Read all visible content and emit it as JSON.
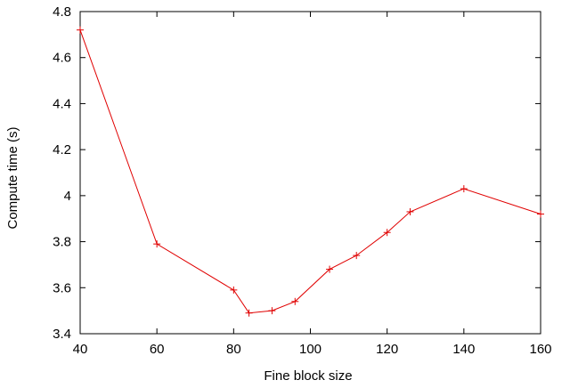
{
  "chart_data": {
    "type": "line",
    "title": "",
    "xlabel": "Fine block size",
    "ylabel": "Compute time (s)",
    "xlim": [
      40,
      160
    ],
    "ylim": [
      3.4,
      4.8
    ],
    "xticks": [
      40,
      60,
      80,
      100,
      120,
      140,
      160
    ],
    "yticks": [
      3.4,
      3.6,
      3.8,
      4.0,
      4.2,
      4.4,
      4.6,
      4.8
    ],
    "xtick_labels": [
      "40",
      "60",
      "80",
      "100",
      "120",
      "140",
      "160"
    ],
    "ytick_labels": [
      "3.4",
      "3.6",
      "3.8",
      "4",
      "4.2",
      "4.4",
      "4.6",
      "4.8"
    ],
    "grid": false,
    "legend": "none",
    "series": [
      {
        "color": "#e00000",
        "marker": "plus",
        "x": [
          40,
          60,
          80,
          84,
          90,
          96,
          105,
          112,
          120,
          126,
          140,
          160
        ],
        "y": [
          4.72,
          3.79,
          3.59,
          3.49,
          3.5,
          3.54,
          3.68,
          3.74,
          3.84,
          3.93,
          4.03,
          3.92
        ]
      }
    ]
  }
}
